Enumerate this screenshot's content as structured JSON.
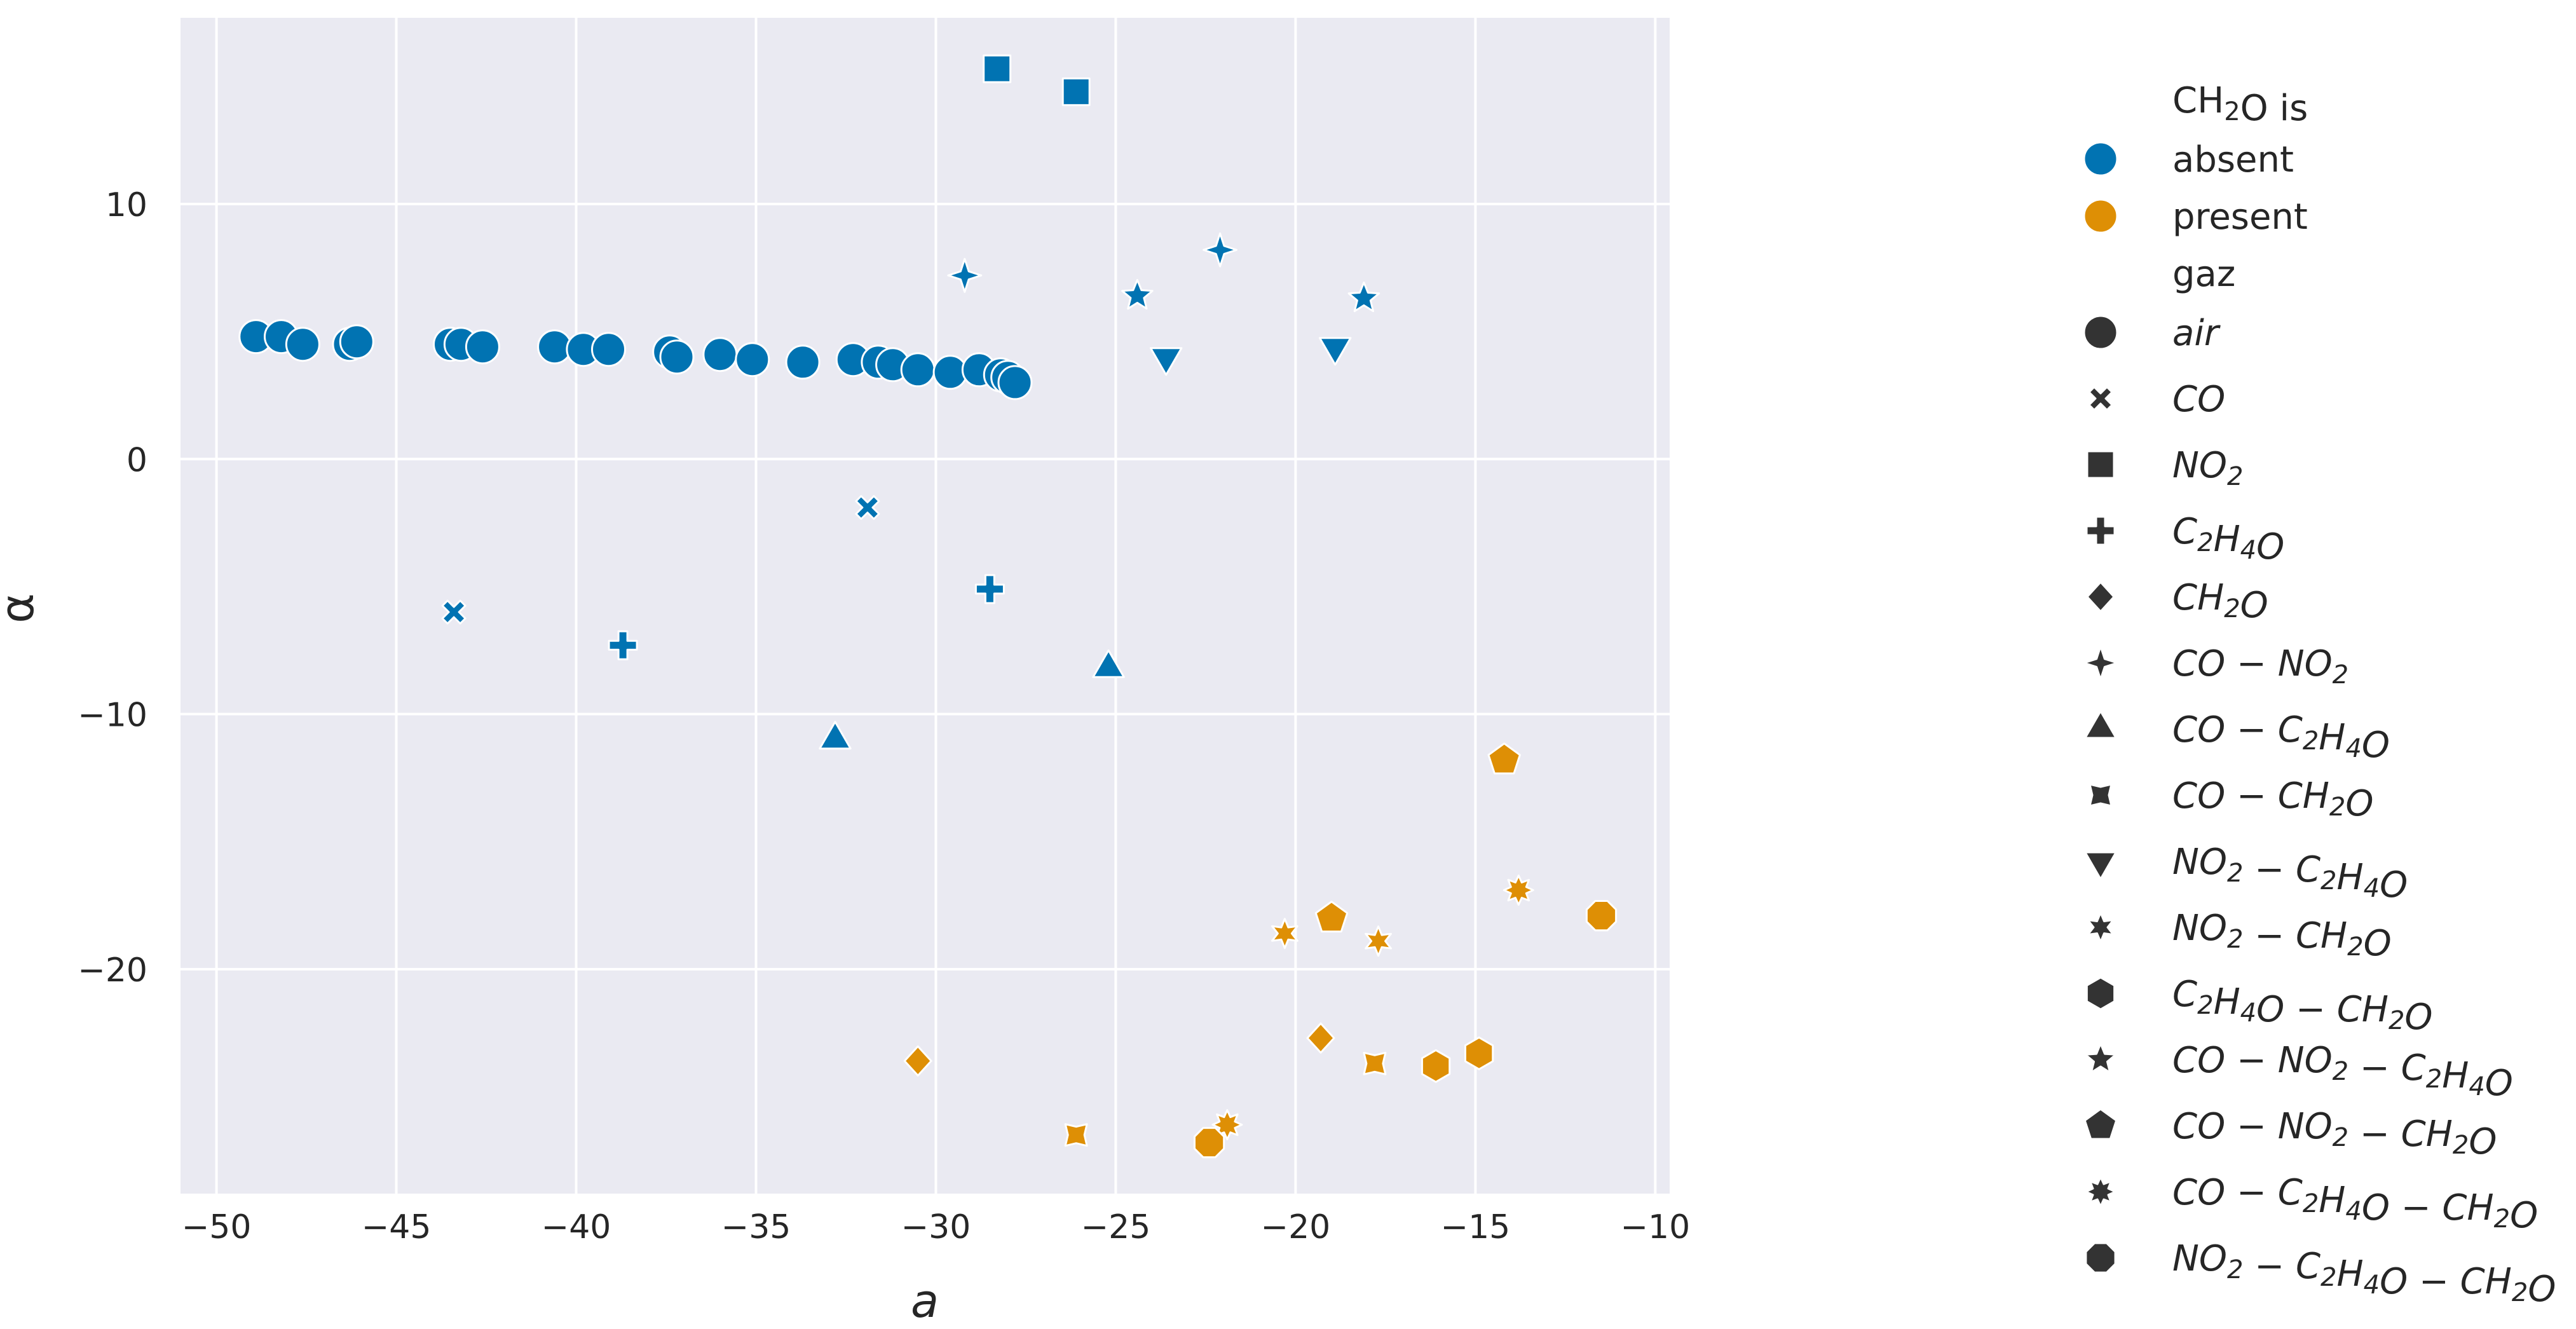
{
  "chart_data": {
    "type": "scatter",
    "title": "",
    "xlabel": "a",
    "ylabel": "α",
    "xlim": [
      -51,
      -9.6
    ],
    "ylim": [
      -28.8,
      17.3
    ],
    "xticks": [
      -50,
      -45,
      -40,
      -35,
      -30,
      -25,
      -20,
      -15,
      -10
    ],
    "yticks": [
      10,
      0,
      -10,
      -20
    ],
    "xtick_labels": [
      "−50",
      "−45",
      "−40",
      "−35",
      "−30",
      "−25",
      "−20",
      "−15",
      "−10"
    ],
    "ytick_labels": [
      "10",
      "0",
      "−10",
      "−20"
    ],
    "grid": true,
    "background": "#EAEAF2",
    "legend_position": "outside right",
    "hue_title_parts": [
      "CH",
      "2",
      "O",
      " is"
    ],
    "hue": [
      {
        "label": "absent",
        "color": "#0173B2"
      },
      {
        "label": "present",
        "color": "#DE8F05"
      }
    ],
    "style_title": "gaz",
    "markers": [
      {
        "key": "air",
        "marker": "circle",
        "label_parts": [
          "air"
        ]
      },
      {
        "key": "CO",
        "marker": "x",
        "label_parts": [
          "CO"
        ]
      },
      {
        "key": "NO2",
        "marker": "square",
        "label_parts": [
          "NO",
          "2"
        ]
      },
      {
        "key": "C2H4O",
        "marker": "plus",
        "label_parts": [
          "C",
          "2",
          "H",
          "4",
          "O"
        ]
      },
      {
        "key": "CH2O",
        "marker": "diamond",
        "label_parts": [
          "CH",
          "2",
          "O"
        ]
      },
      {
        "key": "CO-NO2",
        "marker": "star4",
        "label_parts": [
          "CO − NO",
          "2"
        ]
      },
      {
        "key": "CO-C2H4O",
        "marker": "triangle-up",
        "label_parts": [
          "CO − C",
          "2",
          "H",
          "4",
          "O"
        ]
      },
      {
        "key": "CO-CH2O",
        "marker": "x4",
        "label_parts": [
          "CO − CH",
          "2",
          "O"
        ]
      },
      {
        "key": "NO2-C2H4O",
        "marker": "triangle-down",
        "label_parts": [
          "NO",
          "2",
          " − C",
          "2",
          "H",
          "4",
          "O"
        ]
      },
      {
        "key": "NO2-CH2O",
        "marker": "star6",
        "label_parts": [
          "NO",
          "2",
          " − CH",
          "2",
          "O"
        ]
      },
      {
        "key": "C2H4O-CH2O",
        "marker": "hexagon",
        "label_parts": [
          "C",
          "2",
          "H",
          "4",
          "O − CH",
          "2",
          "O"
        ]
      },
      {
        "key": "CO-NO2-C2H4O",
        "marker": "star5",
        "label_parts": [
          "CO − NO",
          "2",
          " − C",
          "2",
          "H",
          "4",
          "O"
        ]
      },
      {
        "key": "CO-NO2-CH2O",
        "marker": "pentagon",
        "label_parts": [
          "CO − NO",
          "2",
          " − CH",
          "2",
          "O"
        ]
      },
      {
        "key": "CO-C2H4O-CH2O",
        "marker": "star8",
        "label_parts": [
          "CO − C",
          "2",
          "H",
          "4",
          "O − CH",
          "2",
          "O"
        ]
      },
      {
        "key": "NO2-C2H4O-CH2O",
        "marker": "octagon",
        "label_parts": [
          "NO",
          "2",
          " − C",
          "2",
          "H",
          "4",
          "O − CH",
          "2",
          "O"
        ]
      }
    ],
    "points": [
      {
        "x": -48.9,
        "y": 4.8,
        "gaz": "air",
        "CH2O": "absent"
      },
      {
        "x": -48.2,
        "y": 4.8,
        "gaz": "air",
        "CH2O": "absent"
      },
      {
        "x": -47.6,
        "y": 4.5,
        "gaz": "air",
        "CH2O": "absent"
      },
      {
        "x": -46.3,
        "y": 4.5,
        "gaz": "air",
        "CH2O": "absent"
      },
      {
        "x": -46.1,
        "y": 4.6,
        "gaz": "air",
        "CH2O": "absent"
      },
      {
        "x": -43.5,
        "y": 4.5,
        "gaz": "air",
        "CH2O": "absent"
      },
      {
        "x": -43.2,
        "y": 4.5,
        "gaz": "air",
        "CH2O": "absent"
      },
      {
        "x": -42.6,
        "y": 4.4,
        "gaz": "air",
        "CH2O": "absent"
      },
      {
        "x": -40.6,
        "y": 4.4,
        "gaz": "air",
        "CH2O": "absent"
      },
      {
        "x": -39.8,
        "y": 4.3,
        "gaz": "air",
        "CH2O": "absent"
      },
      {
        "x": -39.1,
        "y": 4.3,
        "gaz": "air",
        "CH2O": "absent"
      },
      {
        "x": -37.4,
        "y": 4.2,
        "gaz": "air",
        "CH2O": "absent"
      },
      {
        "x": -37.2,
        "y": 4.0,
        "gaz": "air",
        "CH2O": "absent"
      },
      {
        "x": -36.0,
        "y": 4.1,
        "gaz": "air",
        "CH2O": "absent"
      },
      {
        "x": -35.1,
        "y": 3.9,
        "gaz": "air",
        "CH2O": "absent"
      },
      {
        "x": -33.7,
        "y": 3.8,
        "gaz": "air",
        "CH2O": "absent"
      },
      {
        "x": -32.3,
        "y": 3.9,
        "gaz": "air",
        "CH2O": "absent"
      },
      {
        "x": -31.6,
        "y": 3.8,
        "gaz": "air",
        "CH2O": "absent"
      },
      {
        "x": -31.2,
        "y": 3.7,
        "gaz": "air",
        "CH2O": "absent"
      },
      {
        "x": -30.5,
        "y": 3.5,
        "gaz": "air",
        "CH2O": "absent"
      },
      {
        "x": -29.6,
        "y": 3.4,
        "gaz": "air",
        "CH2O": "absent"
      },
      {
        "x": -28.8,
        "y": 3.5,
        "gaz": "air",
        "CH2O": "absent"
      },
      {
        "x": -28.2,
        "y": 3.3,
        "gaz": "air",
        "CH2O": "absent"
      },
      {
        "x": -28.0,
        "y": 3.2,
        "gaz": "air",
        "CH2O": "absent"
      },
      {
        "x": -27.8,
        "y": 3.0,
        "gaz": "air",
        "CH2O": "absent"
      },
      {
        "x": -43.4,
        "y": -6.0,
        "gaz": "CO",
        "CH2O": "absent"
      },
      {
        "x": -31.9,
        "y": -1.9,
        "gaz": "CO",
        "CH2O": "absent"
      },
      {
        "x": -28.3,
        "y": 15.3,
        "gaz": "NO2",
        "CH2O": "absent"
      },
      {
        "x": -26.1,
        "y": 14.4,
        "gaz": "NO2",
        "CH2O": "absent"
      },
      {
        "x": -38.7,
        "y": -7.3,
        "gaz": "C2H4O",
        "CH2O": "absent"
      },
      {
        "x": -28.5,
        "y": -5.1,
        "gaz": "C2H4O",
        "CH2O": "absent"
      },
      {
        "x": -29.2,
        "y": 7.2,
        "gaz": "CO-NO2",
        "CH2O": "absent"
      },
      {
        "x": -22.1,
        "y": 8.2,
        "gaz": "CO-NO2",
        "CH2O": "absent"
      },
      {
        "x": -32.8,
        "y": -11.0,
        "gaz": "CO-C2H4O",
        "CH2O": "absent"
      },
      {
        "x": -25.2,
        "y": -8.2,
        "gaz": "CO-C2H4O",
        "CH2O": "absent"
      },
      {
        "x": -23.6,
        "y": 4.0,
        "gaz": "NO2-C2H4O",
        "CH2O": "absent"
      },
      {
        "x": -18.9,
        "y": 4.4,
        "gaz": "NO2-C2H4O",
        "CH2O": "absent"
      },
      {
        "x": -24.4,
        "y": 6.4,
        "gaz": "CO-NO2-C2H4O",
        "CH2O": "absent"
      },
      {
        "x": -18.1,
        "y": 6.3,
        "gaz": "CO-NO2-C2H4O",
        "CH2O": "absent"
      },
      {
        "x": -30.5,
        "y": -23.6,
        "gaz": "CH2O",
        "CH2O": "present"
      },
      {
        "x": -19.3,
        "y": -22.7,
        "gaz": "CH2O",
        "CH2O": "present"
      },
      {
        "x": -26.1,
        "y": -26.5,
        "gaz": "CO-CH2O",
        "CH2O": "present"
      },
      {
        "x": -17.8,
        "y": -23.7,
        "gaz": "CO-CH2O",
        "CH2O": "present"
      },
      {
        "x": -20.3,
        "y": -18.6,
        "gaz": "NO2-CH2O",
        "CH2O": "present"
      },
      {
        "x": -17.7,
        "y": -18.9,
        "gaz": "NO2-CH2O",
        "CH2O": "present"
      },
      {
        "x": -16.1,
        "y": -23.8,
        "gaz": "C2H4O-CH2O",
        "CH2O": "present"
      },
      {
        "x": -14.9,
        "y": -23.3,
        "gaz": "C2H4O-CH2O",
        "CH2O": "present"
      },
      {
        "x": -14.2,
        "y": -11.8,
        "gaz": "CO-NO2-CH2O",
        "CH2O": "present"
      },
      {
        "x": -19.0,
        "y": -18.0,
        "gaz": "CO-NO2-CH2O",
        "CH2O": "present"
      },
      {
        "x": -21.9,
        "y": -26.1,
        "gaz": "CO-C2H4O-CH2O",
        "CH2O": "present"
      },
      {
        "x": -13.8,
        "y": -16.9,
        "gaz": "CO-C2H4O-CH2O",
        "CH2O": "present"
      },
      {
        "x": -22.4,
        "y": -26.8,
        "gaz": "NO2-C2H4O-CH2O",
        "CH2O": "present"
      },
      {
        "x": -11.5,
        "y": -17.9,
        "gaz": "NO2-C2H4O-CH2O",
        "CH2O": "present"
      }
    ]
  }
}
